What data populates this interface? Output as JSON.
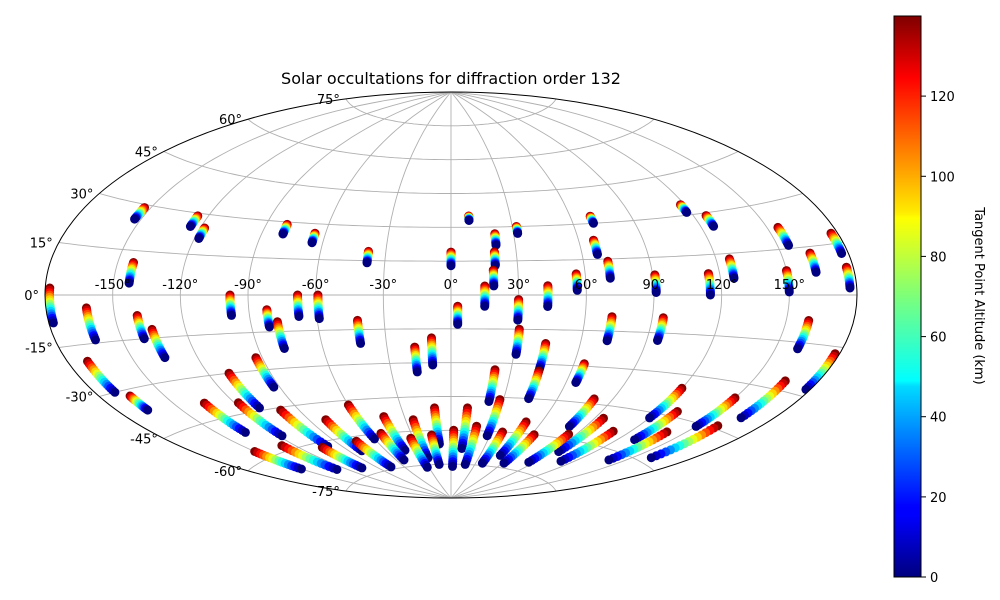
{
  "chart_data": {
    "type": "scatter",
    "projection": "aitoff",
    "title": "Solar occultations for diffraction order 132",
    "xlabel": "",
    "ylabel": "",
    "lon_tick_labels": [
      "-150°",
      "-120°",
      "-90°",
      "-60°",
      "-30°",
      "0°",
      "30°",
      "60°",
      "90°",
      "120°",
      "150°"
    ],
    "lat_tick_labels": [
      "-75°",
      "-60°",
      "-45°",
      "-30°",
      "-15°",
      "0°",
      "15°",
      "30°",
      "45°",
      "60°",
      "75°"
    ],
    "lon_ticks": [
      -150,
      -120,
      -90,
      -60,
      -30,
      0,
      30,
      60,
      90,
      120,
      150
    ],
    "lat_ticks": [
      -75,
      -60,
      -45,
      -30,
      -15,
      0,
      15,
      30,
      45,
      60,
      75
    ],
    "grid": true,
    "colormap": "jet",
    "colorbar": {
      "label": "Tangent Point Altitude (km)",
      "range": [
        0,
        140
      ],
      "ticks": [
        0,
        20,
        40,
        60,
        80,
        100,
        120
      ],
      "tick_labels": [
        "0",
        "20",
        "40",
        "60",
        "80",
        "100",
        "120"
      ]
    },
    "altitude_range_km": [
      0,
      140
    ],
    "tracks": [
      {
        "lon": -178,
        "lat_top": 2,
        "lat_bottom": -8
      },
      {
        "lon": -153,
        "lat_top": 29,
        "lat_bottom": 25
      },
      {
        "lon": -143,
        "lat_top": 11,
        "lat_bottom": 4
      },
      {
        "lon": -125,
        "lat_top": 29,
        "lat_bottom": 25
      },
      {
        "lon": -118,
        "lat_top": 25,
        "lat_bottom": 21
      },
      {
        "lon": -80,
        "lat_top": 29,
        "lat_bottom": 25
      },
      {
        "lon": -65,
        "lat_top": 26,
        "lat_bottom": 22
      },
      {
        "lon": -38,
        "lat_top": 19,
        "lat_bottom": 14
      },
      {
        "lon": 0,
        "lat_top": 19,
        "lat_bottom": 13
      },
      {
        "lon": 9,
        "lat_top": 35,
        "lat_bottom": 33
      },
      {
        "lon": 21,
        "lat_top": 27,
        "lat_bottom": 22
      },
      {
        "lon": 20,
        "lat_top": 19,
        "lat_bottom": 13
      },
      {
        "lon": 19,
        "lat_top": 11,
        "lat_bottom": 4
      },
      {
        "lon": 32,
        "lat_top": 30,
        "lat_bottom": 27
      },
      {
        "lon": 70,
        "lat_top": 33,
        "lat_bottom": 30
      },
      {
        "lon": 67,
        "lat_top": 23,
        "lat_bottom": 17
      },
      {
        "lon": 71,
        "lat_top": 14,
        "lat_bottom": 7
      },
      {
        "lon": 56,
        "lat_top": 9,
        "lat_bottom": 2
      },
      {
        "lon": 91,
        "lat_top": 8,
        "lat_bottom": 1
      },
      {
        "lon": 118,
        "lat_top": 34,
        "lat_bottom": 31
      },
      {
        "lon": 126,
        "lat_top": 29,
        "lat_bottom": 25
      },
      {
        "lon": 126,
        "lat_top": 13,
        "lat_bottom": 6
      },
      {
        "lon": 115,
        "lat_top": 8,
        "lat_bottom": 0
      },
      {
        "lon": 155,
        "lat_top": 22,
        "lat_bottom": 16
      },
      {
        "lon": 163,
        "lat_top": 13,
        "lat_bottom": 7
      },
      {
        "lon": 150,
        "lat_top": 8,
        "lat_bottom": 1
      },
      {
        "lon": 177,
        "lat_top": 18,
        "lat_bottom": 12
      },
      {
        "lon": 177,
        "lat_top": 8,
        "lat_bottom": 2
      },
      {
        "lon": -162,
        "lat_top": -4,
        "lat_bottom": -14
      },
      {
        "lon": -140,
        "lat_top": -7,
        "lat_bottom": -15
      },
      {
        "lon": -135,
        "lat_top": -12,
        "lat_bottom": -22
      },
      {
        "lon": -98,
        "lat_top": 0,
        "lat_bottom": -8
      },
      {
        "lon": -82,
        "lat_top": -6,
        "lat_bottom": -13
      },
      {
        "lon": -78,
        "lat_top": -11,
        "lat_bottom": -22
      },
      {
        "lon": -68,
        "lat_top": 0,
        "lat_bottom": -9
      },
      {
        "lon": -59,
        "lat_top": 0,
        "lat_bottom": -10
      },
      {
        "lon": -42,
        "lat_top": -11,
        "lat_bottom": -21
      },
      {
        "lon": -17,
        "lat_top": -23,
        "lat_bottom": -34
      },
      {
        "lon": -9,
        "lat_top": -19,
        "lat_bottom": -31
      },
      {
        "lon": 3,
        "lat_top": -5,
        "lat_bottom": -13
      },
      {
        "lon": 15,
        "lat_top": 4,
        "lat_bottom": -5
      },
      {
        "lon": 30,
        "lat_top": -2,
        "lat_bottom": -11
      },
      {
        "lon": 31,
        "lat_top": -15,
        "lat_bottom": -26
      },
      {
        "lon": 43,
        "lat_top": 4,
        "lat_bottom": -5
      },
      {
        "lon": 44,
        "lat_top": -21,
        "lat_bottom": -32
      },
      {
        "lon": 72,
        "lat_top": -9,
        "lat_bottom": -19
      },
      {
        "lon": 95,
        "lat_top": -9,
        "lat_bottom": -18
      },
      {
        "lon": 160,
        "lat_top": -8,
        "lat_bottom": -17
      },
      {
        "lon": 178,
        "lat_top": -17,
        "lat_bottom": -28
      },
      {
        "lon": -171,
        "lat_top": -20,
        "lat_bottom": -30
      },
      {
        "lon": -166,
        "lat_top": -32,
        "lat_bottom": -37
      },
      {
        "lon": -93,
        "lat_top": -25,
        "lat_bottom": -37
      },
      {
        "lon": -110,
        "lat_top": -30,
        "lat_bottom": -44
      },
      {
        "lon": -135,
        "lat_top": -39,
        "lat_bottom": -51
      },
      {
        "lon": -118,
        "lat_top": -41,
        "lat_bottom": -55
      },
      {
        "lon": -100,
        "lat_top": -46,
        "lat_bottom": -62
      },
      {
        "lon": -80,
        "lat_top": -52,
        "lat_bottom": -66
      },
      {
        "lon": -60,
        "lat_top": -47,
        "lat_bottom": -62
      },
      {
        "lon": -43,
        "lat_top": -53,
        "lat_bottom": -68
      },
      {
        "lon": -25,
        "lat_top": -55,
        "lat_bottom": -72
      },
      {
        "lon": -10,
        "lat_top": -50,
        "lat_bottom": -66
      },
      {
        "lon": 10,
        "lat_top": -50,
        "lat_bottom": -68
      },
      {
        "lon": 22,
        "lat_top": -33,
        "lat_bottom": -47
      },
      {
        "lon": 28,
        "lat_top": -46,
        "lat_bottom": -62
      },
      {
        "lon": 44,
        "lat_top": -33,
        "lat_bottom": -45
      },
      {
        "lon": 50,
        "lat_top": -55,
        "lat_bottom": -70
      },
      {
        "lon": 65,
        "lat_top": -29,
        "lat_bottom": -37
      },
      {
        "lon": 80,
        "lat_top": -43,
        "lat_bottom": -55
      },
      {
        "lon": 95,
        "lat_top": -50,
        "lat_bottom": -65
      },
      {
        "lon": 120,
        "lat_top": -35,
        "lat_bottom": -47
      },
      {
        "lon": 130,
        "lat_top": -43,
        "lat_bottom": -55
      },
      {
        "lon": 150,
        "lat_top": -35,
        "lat_bottom": -46
      },
      {
        "lon": 165,
        "lat_top": -27,
        "lat_bottom": -40
      },
      {
        "lon": -150,
        "lat_top": -57,
        "lat_bottom": -66
      },
      {
        "lon": -128,
        "lat_top": -58,
        "lat_bottom": -70
      },
      {
        "lon": -105,
        "lat_top": -62,
        "lat_bottom": -72
      },
      {
        "lon": -75,
        "lat_top": -62,
        "lat_bottom": -74
      },
      {
        "lon": -52,
        "lat_top": -60,
        "lat_bottom": -72
      },
      {
        "lon": -32,
        "lat_top": -63,
        "lat_bottom": -76
      },
      {
        "lon": -15,
        "lat_top": -62,
        "lat_bottom": -75
      },
      {
        "lon": 2,
        "lat_top": -60,
        "lat_bottom": -76
      },
      {
        "lon": 18,
        "lat_top": -58,
        "lat_bottom": -75
      },
      {
        "lon": 38,
        "lat_top": -60,
        "lat_bottom": -74
      },
      {
        "lon": 62,
        "lat_top": -60,
        "lat_bottom": -73
      },
      {
        "lon": 85,
        "lat_top": -58,
        "lat_bottom": -71
      },
      {
        "lon": 110,
        "lat_top": -54,
        "lat_bottom": -68
      },
      {
        "lon": 140,
        "lat_top": -50,
        "lat_bottom": -63
      },
      {
        "lon": 160,
        "lat_top": -44,
        "lat_bottom": -58
      }
    ]
  }
}
